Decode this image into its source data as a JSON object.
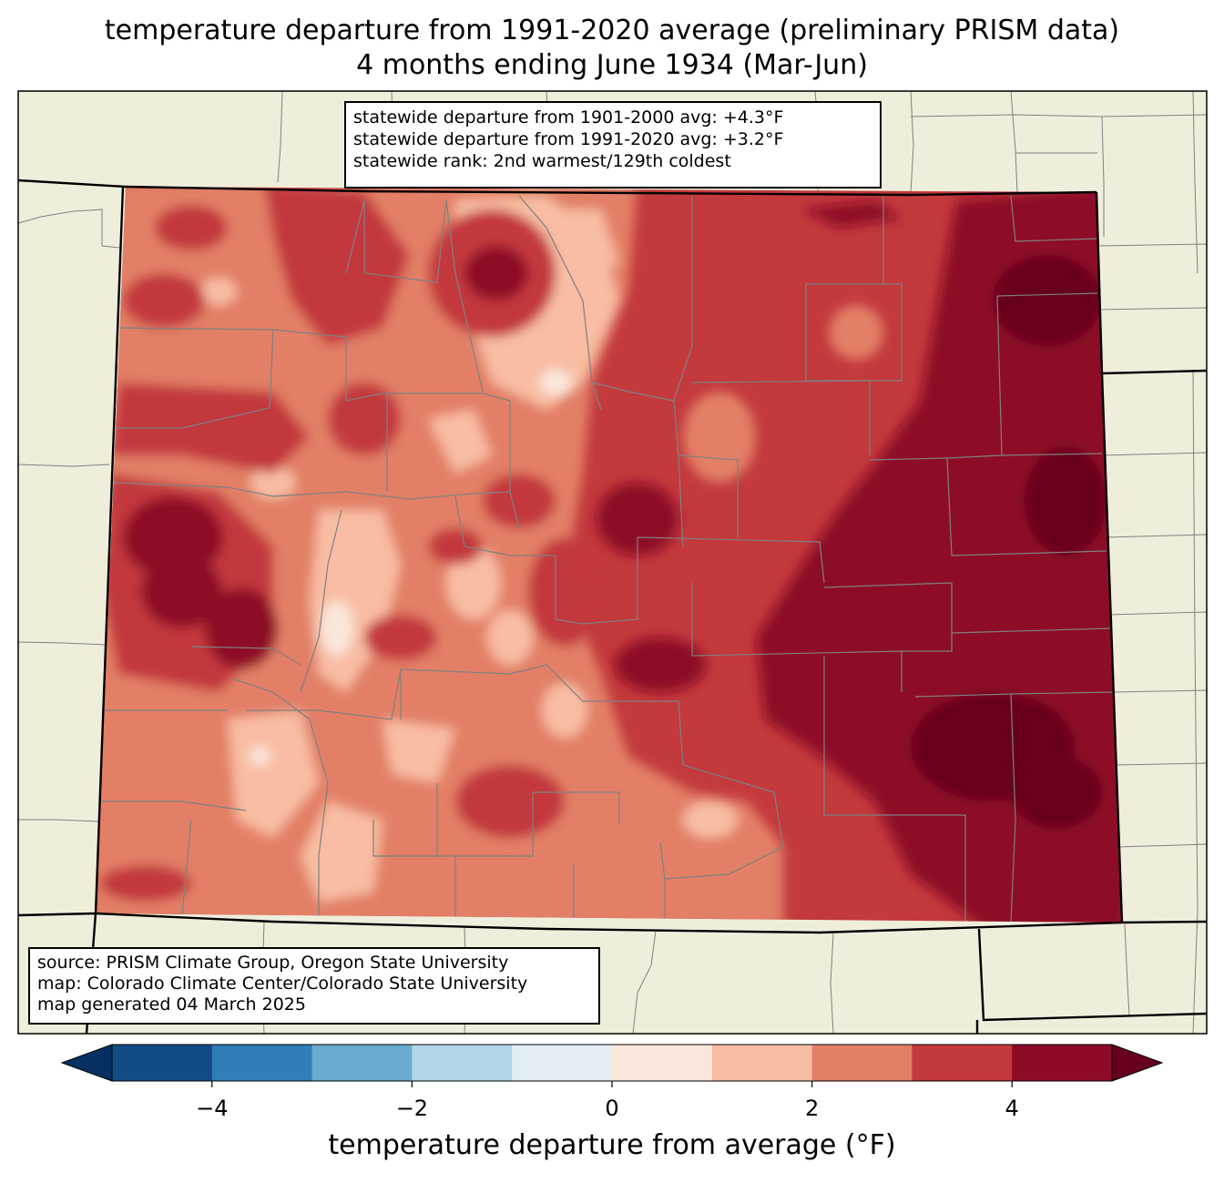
{
  "title": {
    "line1": "temperature departure from 1991-2020 average (preliminary PRISM data)",
    "line2": "4 months ending June 1934 (Mar-Jun)"
  },
  "stats": {
    "line1": "statewide departure from 1901-2000 avg: +4.3°F",
    "line2": "statewide departure from 1991-2020 avg: +3.2°F",
    "line3": "statewide rank: 2nd warmest/129th coldest"
  },
  "credits": {
    "line1": "source: PRISM Climate Group, Oregon State University",
    "line2": "map: Colorado Climate Center/Colorado State University",
    "line3": "map generated 04 March 2025"
  },
  "colorbar": {
    "label": "temperature departure from average (°F)",
    "ticks": [
      "−4",
      "−2",
      "0",
      "2",
      "4"
    ],
    "tick_values": [
      -4,
      -2,
      0,
      2,
      4
    ],
    "bin_edges": [
      -5,
      -4,
      -3,
      -2,
      -1,
      0,
      1,
      2,
      3,
      4,
      5
    ],
    "colors": [
      "#134b87",
      "#307db8",
      "#6aaccf",
      "#b1d6e7",
      "#e2eef4",
      "#fae7dc",
      "#f8bda2",
      "#e27f66",
      "#c3393c",
      "#8e0b27"
    ],
    "under_color": "#053061",
    "over_color": "#67001f"
  },
  "map_colors": {
    "background": "#efeedb",
    "state_border": "#000000",
    "county_border": "#808080"
  }
}
